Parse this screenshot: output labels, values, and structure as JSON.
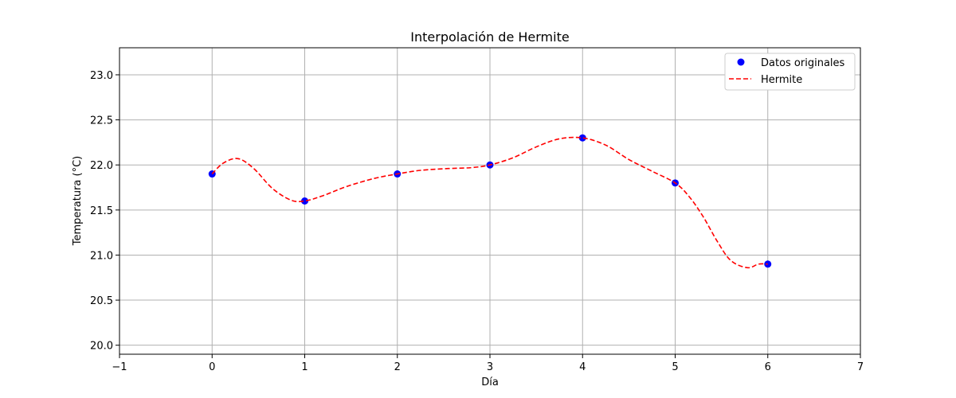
{
  "chart_data": {
    "type": "line",
    "title": "Interpolación de Hermite",
    "xlabel": "Día",
    "ylabel": "Temperatura (°C)",
    "xlim": [
      -1,
      7
    ],
    "ylim": [
      19.9,
      23.3
    ],
    "xticks": [
      -1,
      0,
      1,
      2,
      3,
      4,
      5,
      6,
      7
    ],
    "xtick_labels": [
      "−1",
      "0",
      "1",
      "2",
      "3",
      "4",
      "5",
      "6",
      "7"
    ],
    "yticks": [
      20.0,
      20.5,
      21.0,
      21.5,
      22.0,
      22.5,
      23.0
    ],
    "ytick_labels": [
      "20.0",
      "20.5",
      "21.0",
      "21.5",
      "22.0",
      "22.5",
      "23.0"
    ],
    "grid": true,
    "legend_position": "top-right",
    "series": [
      {
        "name": "Datos originales",
        "kind": "scatter",
        "color": "#0000ff",
        "x": [
          0,
          1,
          2,
          3,
          4,
          5,
          6
        ],
        "y": [
          21.9,
          21.6,
          21.9,
          22.0,
          22.3,
          21.8,
          20.9
        ]
      },
      {
        "name": "Hermite",
        "kind": "line",
        "style": "dashed",
        "color": "#ff0000",
        "x": [
          0,
          0.12,
          0.28,
          0.45,
          0.65,
          0.85,
          1,
          1.2,
          1.45,
          1.75,
          2,
          2.25,
          2.55,
          2.8,
          3,
          3.25,
          3.5,
          3.75,
          4,
          4.25,
          4.5,
          4.75,
          5,
          5.15,
          5.3,
          5.45,
          5.6,
          5.78,
          5.9,
          6
        ],
        "y": [
          21.9,
          22.02,
          22.07,
          21.96,
          21.74,
          21.61,
          21.6,
          21.66,
          21.76,
          21.85,
          21.9,
          21.94,
          21.96,
          21.97,
          22.0,
          22.08,
          22.2,
          22.29,
          22.3,
          22.22,
          22.06,
          21.93,
          21.8,
          21.65,
          21.43,
          21.16,
          20.94,
          20.86,
          20.9,
          20.9
        ]
      }
    ]
  }
}
